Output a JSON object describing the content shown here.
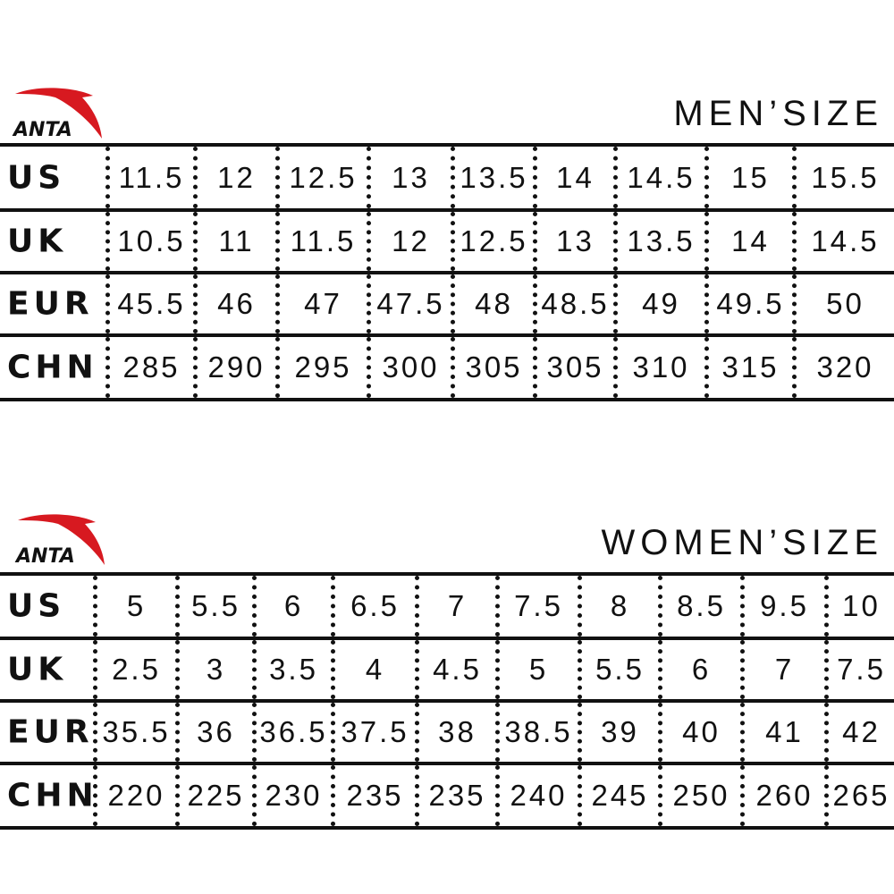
{
  "brand": {
    "logo_text": "ANTA",
    "logo_color": "#d71920"
  },
  "men": {
    "title": "MEN’SIZE",
    "rows": [
      {
        "label": "US",
        "values": [
          "11.5",
          "12",
          "12.5",
          "13",
          "13.5",
          "14",
          "14.5",
          "15",
          "15.5"
        ]
      },
      {
        "label": "UK",
        "values": [
          "10.5",
          "11",
          "11.5",
          "12",
          "12.5",
          "13",
          "13.5",
          "14",
          "14.5"
        ]
      },
      {
        "label": "EUR",
        "values": [
          "45.5",
          "46",
          "47",
          "47.5",
          "48",
          "48.5",
          "49",
          "49.5",
          "50"
        ]
      },
      {
        "label": "CHN",
        "values": [
          "285",
          "290",
          "295",
          "300",
          "305",
          "305",
          "310",
          "315",
          "320"
        ]
      }
    ]
  },
  "women": {
    "title": "WOMEN’SIZE",
    "rows": [
      {
        "label": "US",
        "values": [
          "5",
          "5.5",
          "6",
          "6.5",
          "7",
          "7.5",
          "8",
          "8.5",
          "9.5",
          "10"
        ]
      },
      {
        "label": "UK",
        "values": [
          "2.5",
          "3",
          "3.5",
          "4",
          "4.5",
          "5",
          "5.5",
          "6",
          "7",
          "7.5"
        ]
      },
      {
        "label": "EUR",
        "values": [
          "35.5",
          "36",
          "36.5",
          "37.5",
          "38",
          "38.5",
          "39",
          "40",
          "41",
          "42"
        ]
      },
      {
        "label": "CHN",
        "values": [
          "220",
          "225",
          "230",
          "235",
          "235",
          "240",
          "245",
          "250",
          "260",
          "265"
        ]
      }
    ]
  }
}
